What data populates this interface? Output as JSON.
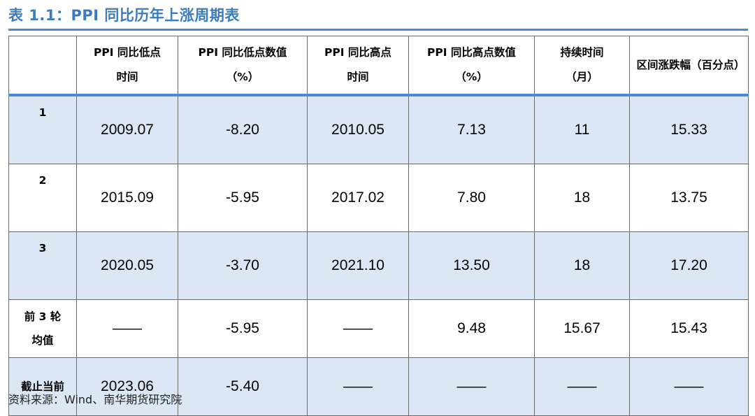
{
  "title": "表 1.1：PPI 同比历年上涨周期表",
  "headers": [
    "",
    "PPI 同比低点时间",
    "PPI 同比低点数值（%）",
    "PPI 同比高点时间",
    "PPI 同比高点数值（%）",
    "持续时间（月）",
    "区间涨跌幅（百分点）"
  ],
  "rows": [
    {
      "label": "1",
      "cells": [
        "2009.07",
        "-8.20",
        "2010.05",
        "7.13",
        "11",
        "15.33"
      ]
    },
    {
      "label": "2",
      "cells": [
        "2015.09",
        "-5.95",
        "2017.02",
        "7.80",
        "18",
        "13.75"
      ]
    },
    {
      "label": "3",
      "cells": [
        "2020.05",
        "-3.70",
        "2021.10",
        "13.50",
        "18",
        "17.20"
      ]
    },
    {
      "label": "前 3 轮均值",
      "cells": [
        "——",
        "-5.95",
        "——",
        "9.48",
        "15.67",
        "15.43"
      ]
    },
    {
      "label": "截止当前",
      "cells": [
        "2023.06",
        "-5.40",
        "——",
        "——",
        "——",
        "——"
      ]
    }
  ],
  "source": "资料来源：Wind、南华期货研究院",
  "colors": {
    "accent": "#3b7bbf",
    "row_shade": "#dbe7f4",
    "border": "#6a6a6a"
  }
}
